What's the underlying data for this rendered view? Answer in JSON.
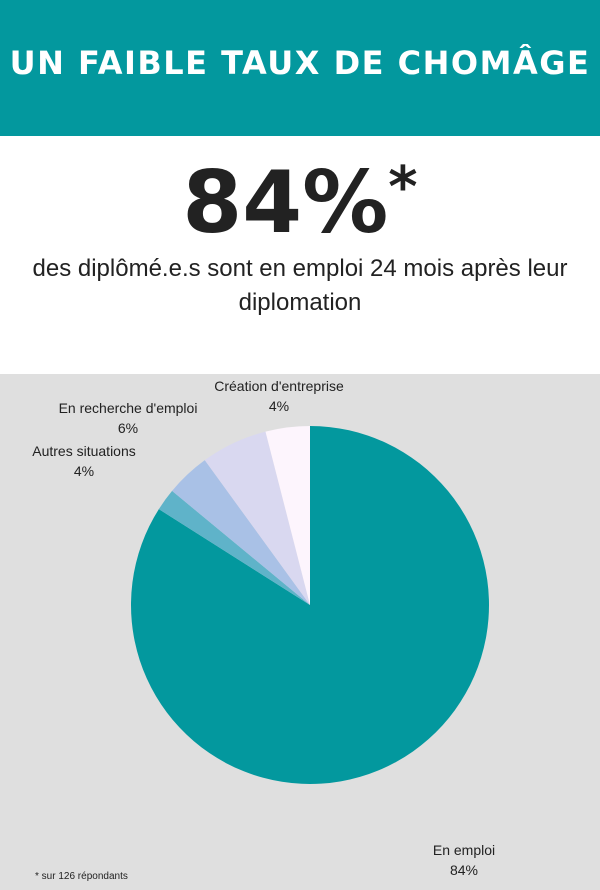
{
  "header": {
    "title": "UN FAIBLE TAUX DE CHOMÂGE"
  },
  "headline": {
    "value": "84%",
    "marker": "*",
    "description": "des diplômé.e.s sont en emploi 24 mois après leur diplomation"
  },
  "footnote": "* sur 126 répondants",
  "colors": {
    "banner": "#03989e",
    "panel": "#dfdfdf"
  },
  "chart_data": {
    "type": "pie",
    "start_angle": "12 o'clock, clockwise",
    "slices": [
      {
        "label": "En emploi",
        "value_label": "84%",
        "value": 84,
        "color": "#03989e"
      },
      {
        "label": "",
        "value_label": "",
        "value": 2,
        "color": "#5fb3c9"
      },
      {
        "label": "Autres situations",
        "value_label": "4%",
        "value": 4,
        "color": "#a9c1e6"
      },
      {
        "label": "En recherche d'emploi",
        "value_label": "6%",
        "value": 6,
        "color": "#d9d8f0"
      },
      {
        "label": "Création d'entreprise",
        "value_label": "4%",
        "value": 4,
        "color": "#fdf5fd"
      }
    ]
  }
}
